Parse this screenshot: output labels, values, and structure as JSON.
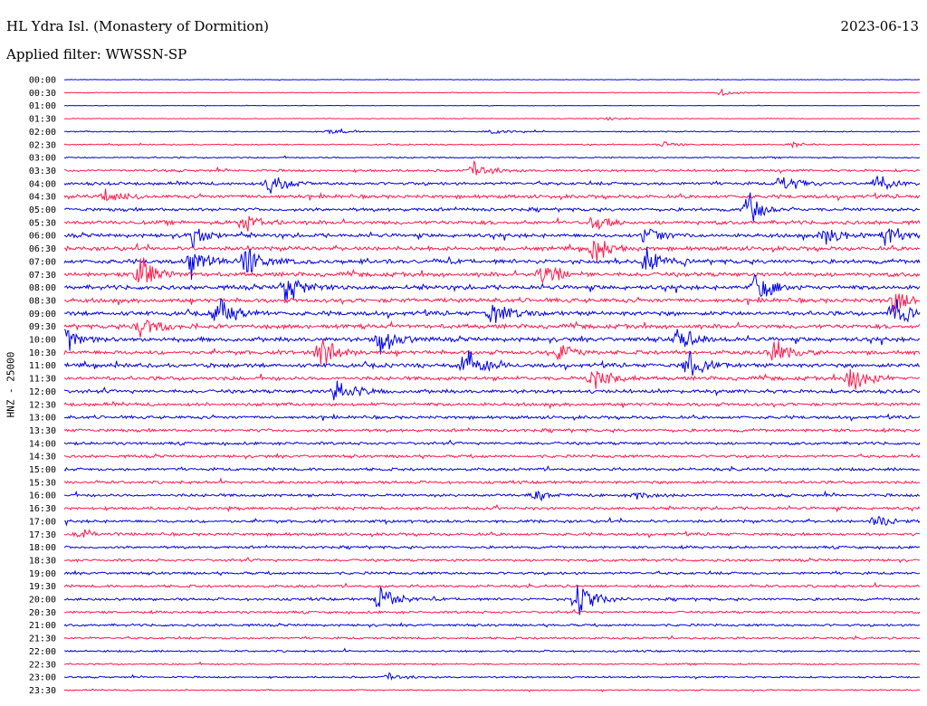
{
  "header": {
    "title": "HL Ydra Isl. (Monastery of Dormition)",
    "date": "2023-06-13",
    "filter": "Applied filter: WWSSN-SP"
  },
  "colors": {
    "trace_a": "#0000e6",
    "trace_b": "#ff1a4d"
  },
  "chart_data": {
    "type": "line",
    "title": "HL Ydra Isl. (Monastery of Dormition)",
    "ylabel": "HNZ - 25000",
    "xlabel": "",
    "y_tick_labels": [
      "00:00",
      "00:30",
      "01:00",
      "01:30",
      "02:00",
      "02:30",
      "03:00",
      "03:30",
      "04:00",
      "04:30",
      "05:00",
      "05:30",
      "06:00",
      "06:30",
      "07:00",
      "07:30",
      "08:00",
      "08:30",
      "09:00",
      "09:30",
      "10:00",
      "10:30",
      "11:00",
      "11:30",
      "12:00",
      "12:30",
      "13:00",
      "13:30",
      "14:00",
      "14:30",
      "15:00",
      "15:30",
      "16:00",
      "16:30",
      "17:00",
      "17:30",
      "18:00",
      "18:30",
      "19:00",
      "19:30",
      "20:00",
      "20:30",
      "21:00",
      "21:30",
      "22:00",
      "22:30",
      "23:00",
      "23:30"
    ],
    "noise_level": [
      0.2,
      0.3,
      0.2,
      0.3,
      0.5,
      0.5,
      0.6,
      1.0,
      1.3,
      1.5,
      1.4,
      1.6,
      1.6,
      1.7,
      1.8,
      1.8,
      1.8,
      1.8,
      1.8,
      1.8,
      1.8,
      1.7,
      1.7,
      1.6,
      1.5,
      1.4,
      1.3,
      1.3,
      1.2,
      1.2,
      1.2,
      1.2,
      1.2,
      1.2,
      1.2,
      1.2,
      1.1,
      1.1,
      1.1,
      1.1,
      1.1,
      1.0,
      1.0,
      0.9,
      0.8,
      0.7,
      0.7,
      0.6
    ],
    "events": [
      {
        "row": 1,
        "pos": 0.77,
        "amp": 4
      },
      {
        "row": 3,
        "pos": 0.63,
        "amp": 4
      },
      {
        "row": 4,
        "pos": 0.31,
        "amp": 3
      },
      {
        "row": 4,
        "pos": 0.5,
        "amp": 3
      },
      {
        "row": 5,
        "pos": 0.7,
        "amp": 4
      },
      {
        "row": 5,
        "pos": 0.85,
        "amp": 4
      },
      {
        "row": 7,
        "pos": 0.48,
        "amp": 10
      },
      {
        "row": 8,
        "pos": 0.24,
        "amp": 14
      },
      {
        "row": 8,
        "pos": 0.84,
        "amp": 14
      },
      {
        "row": 8,
        "pos": 0.95,
        "amp": 14
      },
      {
        "row": 9,
        "pos": 0.05,
        "amp": 10
      },
      {
        "row": 10,
        "pos": 0.8,
        "amp": 22
      },
      {
        "row": 11,
        "pos": 0.21,
        "amp": 12
      },
      {
        "row": 11,
        "pos": 0.62,
        "amp": 12
      },
      {
        "row": 12,
        "pos": 0.15,
        "amp": 14
      },
      {
        "row": 12,
        "pos": 0.68,
        "amp": 14
      },
      {
        "row": 12,
        "pos": 0.89,
        "amp": 16
      },
      {
        "row": 12,
        "pos": 0.96,
        "amp": 18
      },
      {
        "row": 13,
        "pos": 0.62,
        "amp": 18
      },
      {
        "row": 14,
        "pos": 0.15,
        "amp": 20
      },
      {
        "row": 14,
        "pos": 0.21,
        "amp": 30
      },
      {
        "row": 14,
        "pos": 0.68,
        "amp": 20
      },
      {
        "row": 15,
        "pos": 0.09,
        "amp": 22
      },
      {
        "row": 15,
        "pos": 0.56,
        "amp": 20
      },
      {
        "row": 16,
        "pos": 0.26,
        "amp": 22
      },
      {
        "row": 16,
        "pos": 0.81,
        "amp": 22
      },
      {
        "row": 17,
        "pos": 0.97,
        "amp": 16
      },
      {
        "row": 18,
        "pos": 0.18,
        "amp": 22
      },
      {
        "row": 18,
        "pos": 0.5,
        "amp": 18
      },
      {
        "row": 18,
        "pos": 0.97,
        "amp": 20
      },
      {
        "row": 19,
        "pos": 0.09,
        "amp": 18
      },
      {
        "row": 20,
        "pos": 0.0,
        "amp": 20
      },
      {
        "row": 20,
        "pos": 0.37,
        "amp": 22
      },
      {
        "row": 20,
        "pos": 0.72,
        "amp": 18
      },
      {
        "row": 21,
        "pos": 0.3,
        "amp": 22
      },
      {
        "row": 21,
        "pos": 0.58,
        "amp": 12
      },
      {
        "row": 21,
        "pos": 0.83,
        "amp": 20
      },
      {
        "row": 22,
        "pos": 0.47,
        "amp": 22
      },
      {
        "row": 22,
        "pos": 0.73,
        "amp": 18
      },
      {
        "row": 23,
        "pos": 0.62,
        "amp": 20
      },
      {
        "row": 23,
        "pos": 0.92,
        "amp": 22
      },
      {
        "row": 24,
        "pos": 0.32,
        "amp": 22
      },
      {
        "row": 32,
        "pos": 0.55,
        "amp": 6
      },
      {
        "row": 32,
        "pos": 0.67,
        "amp": 6
      },
      {
        "row": 34,
        "pos": 0.95,
        "amp": 8
      },
      {
        "row": 35,
        "pos": 0.02,
        "amp": 8
      },
      {
        "row": 40,
        "pos": 0.37,
        "amp": 18
      },
      {
        "row": 40,
        "pos": 0.6,
        "amp": 28
      },
      {
        "row": 46,
        "pos": 0.38,
        "amp": 4
      }
    ]
  }
}
